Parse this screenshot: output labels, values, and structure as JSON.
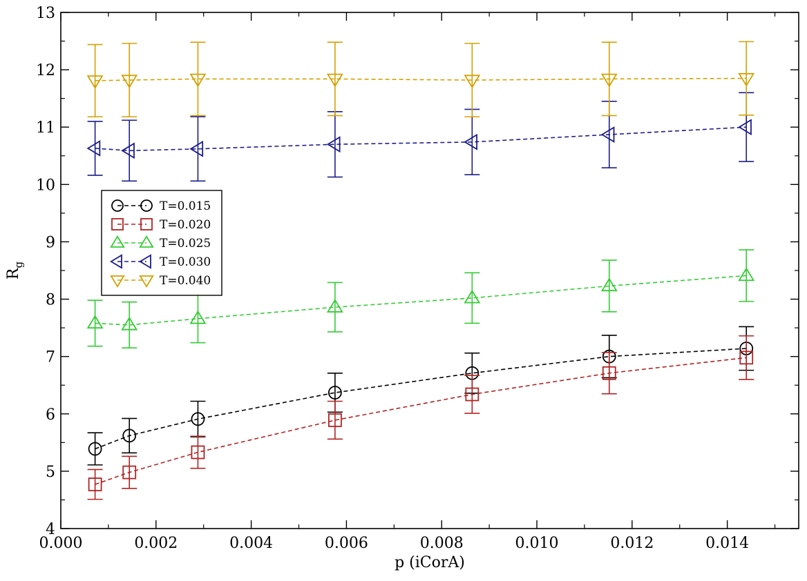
{
  "chart_data": {
    "type": "scatter",
    "xlabel": "p (iCorA)",
    "ylabel_main": "R",
    "ylabel_sub": "g",
    "xlim": [
      0.0,
      0.0155
    ],
    "ylim": [
      4,
      13
    ],
    "xticks": [
      "0.000",
      "0.002",
      "0.004",
      "0.006",
      "0.008",
      "0.010",
      "0.012",
      "0.014"
    ],
    "yticks": [
      "4",
      "5",
      "6",
      "7",
      "8",
      "9",
      "10",
      "11",
      "12",
      "13"
    ],
    "x": [
      0.00072,
      0.00144,
      0.00288,
      0.00576,
      0.00864,
      0.01152,
      0.0144
    ],
    "legend_position": "left-middle",
    "series": [
      {
        "name": "T=0.015",
        "marker": "circle",
        "color": "#000000",
        "values": [
          5.39,
          5.62,
          5.91,
          6.37,
          6.71,
          7.0,
          7.14
        ],
        "errors": [
          0.28,
          0.3,
          0.31,
          0.34,
          0.35,
          0.37,
          0.38
        ]
      },
      {
        "name": "T=0.020",
        "marker": "square",
        "color": "#b22222",
        "values": [
          4.77,
          4.98,
          5.33,
          5.89,
          6.34,
          6.71,
          6.98
        ],
        "errors": [
          0.26,
          0.28,
          0.28,
          0.33,
          0.33,
          0.36,
          0.38
        ]
      },
      {
        "name": "T=0.025",
        "marker": "triangle-up",
        "color": "#33cc33",
        "values": [
          7.58,
          7.55,
          7.66,
          7.86,
          8.02,
          8.23,
          8.41
        ],
        "errors": [
          0.4,
          0.4,
          0.42,
          0.43,
          0.44,
          0.45,
          0.45
        ]
      },
      {
        "name": "T=0.030",
        "marker": "triangle-left",
        "color": "#1c1c8c",
        "values": [
          10.63,
          10.59,
          10.62,
          10.7,
          10.74,
          10.87,
          11.0
        ],
        "errors": [
          0.47,
          0.53,
          0.56,
          0.57,
          0.57,
          0.58,
          0.6
        ]
      },
      {
        "name": "T=0.040",
        "marker": "triangle-down",
        "color": "#d4a000",
        "values": [
          11.81,
          11.82,
          11.84,
          11.84,
          11.82,
          11.84,
          11.85
        ],
        "errors": [
          0.63,
          0.64,
          0.64,
          0.64,
          0.64,
          0.64,
          0.64
        ]
      }
    ]
  }
}
